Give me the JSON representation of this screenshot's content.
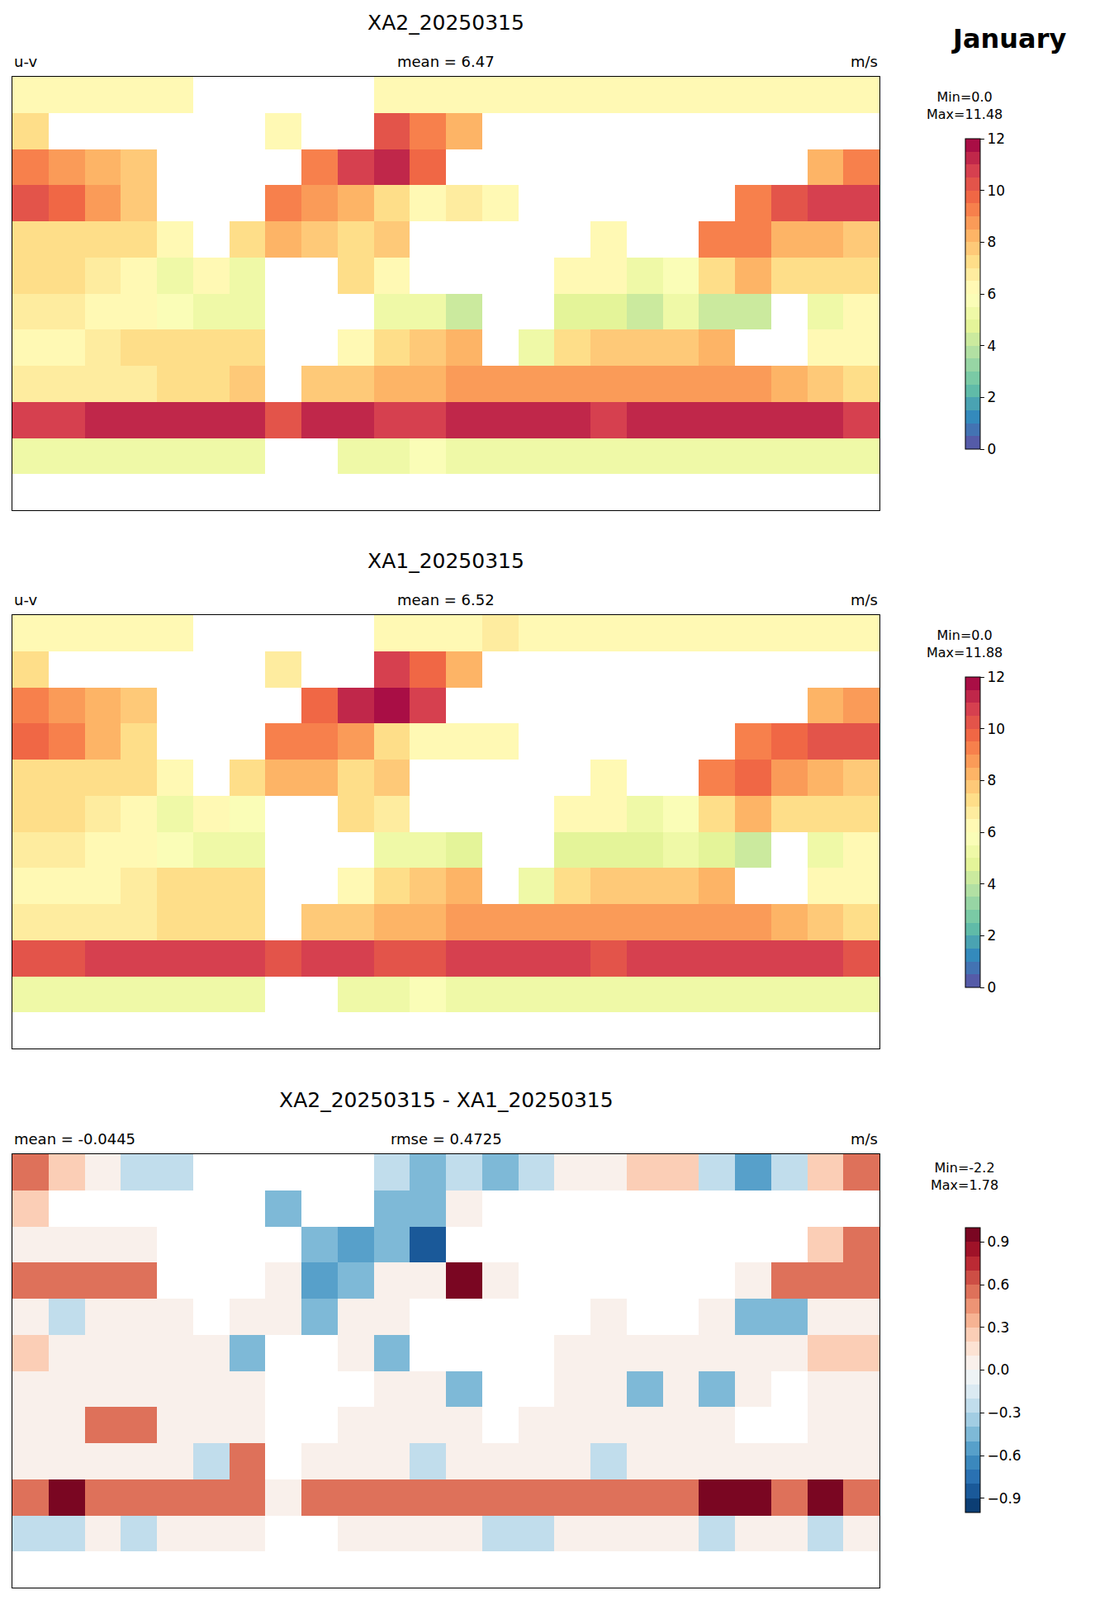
{
  "suptitle": "January",
  "chart_data": [
    {
      "type": "heatmap",
      "title": "XA2_20250315",
      "left_label": "u-v",
      "center_label": "mean = 6.47",
      "right_label": "m/s",
      "colorbar_label": [
        "Min=0.0",
        "Max=11.48"
      ],
      "xlim": [
        -180,
        180
      ],
      "ylim": [
        -90,
        90
      ],
      "tick_labels": false,
      "x": [
        -172.5,
        -157.5,
        -142.5,
        -127.5,
        -112.5,
        -97.5,
        -82.5,
        -67.5,
        -52.5,
        -37.5,
        -22.5,
        -7.5,
        7.5,
        22.5,
        37.5,
        52.5,
        67.5,
        82.5,
        97.5,
        112.5,
        127.5,
        142.5,
        157.5,
        172.5
      ],
      "y": [
        82.5,
        67.5,
        52.5,
        37.5,
        22.5,
        7.5,
        -7.5,
        -22.5,
        -37.5,
        -52.5,
        -67.5,
        -82.5
      ],
      "cells": [
        [
          6,
          6,
          6,
          6,
          6,
          null,
          null,
          null,
          null,
          null,
          6,
          6,
          6,
          6,
          6,
          6,
          6,
          6,
          6,
          6,
          6,
          6,
          6,
          6
        ],
        [
          7,
          null,
          null,
          null,
          null,
          null,
          null,
          6,
          null,
          null,
          10,
          9,
          8,
          null,
          null,
          null,
          null,
          null,
          null,
          null,
          null,
          null,
          null,
          null
        ],
        [
          9,
          8.5,
          8,
          7.5,
          null,
          null,
          null,
          null,
          9,
          10.5,
          11,
          9.5,
          null,
          null,
          null,
          null,
          null,
          null,
          null,
          null,
          null,
          null,
          8,
          9
        ],
        [
          10,
          9.5,
          8.5,
          7.5,
          null,
          null,
          null,
          9,
          8.5,
          8,
          7,
          6,
          6.5,
          6,
          null,
          null,
          null,
          null,
          null,
          null,
          9,
          10,
          10.5,
          10.5
        ],
        [
          7,
          7,
          7,
          7,
          6,
          null,
          7,
          8,
          7.5,
          7,
          7.5,
          null,
          null,
          null,
          null,
          null,
          6,
          null,
          null,
          9,
          9,
          8,
          8,
          7.5
        ],
        [
          7,
          7,
          6.5,
          6,
          5,
          6,
          5,
          null,
          null,
          7,
          6,
          null,
          null,
          null,
          null,
          6,
          6,
          5,
          5.5,
          7,
          8,
          7,
          7,
          7
        ],
        [
          6.5,
          6.5,
          6,
          6,
          5.5,
          5,
          5,
          null,
          null,
          null,
          5,
          5,
          4,
          null,
          null,
          4.5,
          4.5,
          4,
          5,
          4,
          4,
          null,
          5,
          6
        ],
        [
          6,
          6,
          6.5,
          7,
          7,
          7,
          7,
          null,
          null,
          6,
          7,
          7.5,
          8,
          null,
          5,
          7,
          7.5,
          7.5,
          7.5,
          8,
          null,
          null,
          6,
          6
        ],
        [
          6.5,
          6.5,
          6.5,
          6.5,
          7,
          7,
          7.5,
          null,
          7.5,
          7.5,
          8,
          8,
          8.5,
          8.5,
          8.5,
          8.5,
          8.5,
          8.5,
          8.5,
          8.5,
          8.5,
          8,
          7.5,
          7
        ],
        [
          10.5,
          10.5,
          11,
          11,
          11,
          11,
          11,
          10,
          11,
          11,
          10.5,
          10.5,
          11,
          11,
          11,
          11,
          10.5,
          11,
          11,
          11,
          11,
          11,
          11,
          10.5
        ],
        [
          5,
          5,
          5,
          5,
          5,
          5,
          5,
          null,
          null,
          5,
          5,
          5.5,
          5,
          5,
          5,
          5,
          5,
          5,
          5,
          5,
          5,
          5,
          5,
          5
        ],
        [
          null,
          null,
          null,
          null,
          null,
          null,
          null,
          null,
          null,
          null,
          null,
          null,
          null,
          null,
          null,
          null,
          null,
          null,
          null,
          null,
          null,
          null,
          null,
          null
        ]
      ],
      "colorbar_range": [
        0,
        12
      ],
      "colorbar_ticks": [
        0,
        2,
        4,
        6,
        8,
        10,
        12
      ]
    },
    {
      "type": "heatmap",
      "title": "XA1_20250315",
      "left_label": "u-v",
      "center_label": "mean = 6.52",
      "right_label": "m/s",
      "colorbar_label": [
        "Min=0.0",
        "Max=11.88"
      ],
      "xlim": [
        -180,
        180
      ],
      "ylim": [
        -90,
        90
      ],
      "tick_labels": false,
      "x": [
        -172.5,
        -157.5,
        -142.5,
        -127.5,
        -112.5,
        -97.5,
        -82.5,
        -67.5,
        -52.5,
        -37.5,
        -22.5,
        -7.5,
        7.5,
        22.5,
        37.5,
        52.5,
        67.5,
        82.5,
        97.5,
        112.5,
        127.5,
        142.5,
        157.5,
        172.5
      ],
      "y": [
        82.5,
        67.5,
        52.5,
        37.5,
        22.5,
        7.5,
        -7.5,
        -22.5,
        -37.5,
        -52.5,
        -67.5,
        -82.5
      ],
      "cells": [
        [
          6,
          6,
          6,
          6,
          6,
          null,
          null,
          null,
          null,
          null,
          6,
          6,
          6,
          6.5,
          6,
          6,
          6,
          6,
          6,
          6,
          6,
          6,
          6,
          6
        ],
        [
          7,
          null,
          null,
          null,
          null,
          null,
          null,
          6.5,
          null,
          null,
          10.5,
          9.5,
          8,
          null,
          null,
          null,
          null,
          null,
          null,
          null,
          null,
          null,
          null,
          null
        ],
        [
          9,
          8.5,
          8,
          7.5,
          null,
          null,
          null,
          null,
          9.5,
          11,
          11.5,
          10.5,
          null,
          null,
          null,
          null,
          null,
          null,
          null,
          null,
          null,
          null,
          8,
          8.5
        ],
        [
          9.5,
          9,
          8,
          7,
          null,
          null,
          null,
          9,
          9,
          8.5,
          7,
          6,
          6,
          6,
          null,
          null,
          null,
          null,
          null,
          null,
          9,
          9.5,
          10,
          10
        ],
        [
          7,
          7,
          7,
          7,
          6,
          null,
          7,
          8,
          8,
          7,
          7.5,
          null,
          null,
          null,
          null,
          null,
          6,
          null,
          null,
          9,
          9.5,
          8.5,
          8,
          7.5
        ],
        [
          7,
          7,
          6.5,
          6,
          5,
          6,
          5.5,
          null,
          null,
          7,
          6.5,
          null,
          null,
          null,
          null,
          6,
          6,
          5,
          5.5,
          7,
          8,
          7,
          7,
          7
        ],
        [
          6.5,
          6.5,
          6,
          6,
          5.5,
          5,
          5,
          null,
          null,
          null,
          5,
          5,
          4.5,
          null,
          null,
          4.5,
          4.5,
          4.5,
          5,
          4.5,
          4,
          null,
          5,
          6
        ],
        [
          6,
          6,
          6,
          6.5,
          7,
          7,
          7,
          null,
          null,
          6,
          7,
          7.5,
          8,
          null,
          5,
          7,
          7.5,
          7.5,
          7.5,
          8,
          null,
          null,
          6,
          6
        ],
        [
          6.5,
          6.5,
          6.5,
          6.5,
          7,
          7,
          7,
          null,
          7.5,
          7.5,
          8,
          8,
          8.5,
          8.5,
          8.5,
          8.5,
          8.5,
          8.5,
          8.5,
          8.5,
          8.5,
          8,
          7.5,
          7
        ],
        [
          10,
          10,
          10.5,
          10.5,
          10.5,
          10.5,
          10.5,
          10,
          10.5,
          10.5,
          10,
          10,
          10.5,
          10.5,
          10.5,
          10.5,
          10,
          10.5,
          10.5,
          10.5,
          10.5,
          10.5,
          10.5,
          10
        ],
        [
          5,
          5,
          5,
          5,
          5,
          5,
          5,
          null,
          null,
          5,
          5,
          5.5,
          5,
          5,
          5,
          5,
          5,
          5,
          5,
          5,
          5,
          5,
          5,
          5
        ],
        [
          null,
          null,
          null,
          null,
          null,
          null,
          null,
          null,
          null,
          null,
          null,
          null,
          null,
          null,
          null,
          null,
          null,
          null,
          null,
          null,
          null,
          null,
          null,
          null
        ]
      ],
      "colorbar_range": [
        0,
        12
      ],
      "colorbar_ticks": [
        0,
        2,
        4,
        6,
        8,
        10,
        12
      ]
    },
    {
      "type": "heatmap",
      "title": "XA2_20250315 - XA1_20250315",
      "left_label": "mean = -0.0445",
      "center_label": "rmse = 0.4725",
      "right_label": "m/s",
      "colorbar_label": [
        "Min=-2.2",
        "Max=1.78"
      ],
      "xlim": [
        -180,
        180
      ],
      "ylim": [
        -90,
        90
      ],
      "tick_labels": false,
      "x": [
        -172.5,
        -157.5,
        -142.5,
        -127.5,
        -112.5,
        -97.5,
        -82.5,
        -67.5,
        -52.5,
        -37.5,
        -22.5,
        -7.5,
        7.5,
        22.5,
        37.5,
        52.5,
        67.5,
        82.5,
        97.5,
        112.5,
        127.5,
        142.5,
        157.5,
        172.5
      ],
      "y": [
        82.5,
        67.5,
        52.5,
        37.5,
        22.5,
        7.5,
        -7.5,
        -22.5,
        -37.5,
        -52.5,
        -67.5,
        -82.5
      ],
      "cells": [
        [
          0.6,
          0.3,
          0,
          -0.3,
          -0.3,
          null,
          null,
          null,
          null,
          null,
          -0.3,
          -0.5,
          -0.3,
          -0.5,
          -0.3,
          0,
          0,
          0.3,
          0.3,
          -0.3,
          -0.6,
          -0.3,
          0.3,
          0.6
        ],
        [
          0.3,
          null,
          null,
          null,
          null,
          null,
          null,
          -0.5,
          null,
          null,
          -0.5,
          -0.5,
          0,
          null,
          null,
          null,
          null,
          null,
          null,
          null,
          null,
          null,
          null,
          null
        ],
        [
          0,
          0,
          0,
          0,
          null,
          null,
          null,
          null,
          -0.5,
          -0.6,
          -0.5,
          -0.9,
          null,
          null,
          null,
          null,
          null,
          null,
          null,
          null,
          null,
          null,
          0.3,
          0.5
        ],
        [
          0.5,
          0.6,
          0.5,
          0.5,
          null,
          null,
          null,
          0,
          -0.6,
          -0.5,
          0,
          0,
          0.9,
          0,
          null,
          null,
          null,
          null,
          null,
          null,
          0,
          0.5,
          0.5,
          0.5
        ],
        [
          0,
          -0.2,
          0,
          0,
          0,
          null,
          0,
          0,
          -0.5,
          0,
          0,
          null,
          null,
          null,
          null,
          null,
          0,
          null,
          null,
          0,
          -0.5,
          -0.5,
          0,
          0
        ],
        [
          0.2,
          0,
          0,
          0,
          0,
          0,
          -0.5,
          null,
          null,
          0,
          -0.5,
          null,
          null,
          null,
          null,
          0,
          0,
          0,
          0,
          0,
          0,
          0,
          0.2,
          0.2
        ],
        [
          0,
          0,
          0,
          0,
          0,
          0,
          0,
          null,
          null,
          null,
          0,
          0,
          -0.5,
          null,
          null,
          0,
          0,
          -0.5,
          0,
          -0.5,
          0,
          null,
          0,
          0
        ],
        [
          0,
          0,
          0.5,
          0.5,
          0,
          0,
          0,
          null,
          null,
          0,
          0,
          0,
          0,
          null,
          0,
          0,
          0,
          0,
          0,
          0,
          null,
          null,
          0,
          0
        ],
        [
          0,
          0,
          0,
          0,
          0,
          -0.3,
          0.5,
          null,
          0,
          0,
          0,
          -0.3,
          0,
          0,
          0,
          0,
          -0.3,
          0,
          0,
          0,
          0,
          0,
          0,
          0
        ],
        [
          0.6,
          0.9,
          0.6,
          0.5,
          0.5,
          0.6,
          0.5,
          0,
          0.5,
          0.5,
          0.5,
          0.6,
          0.5,
          0.5,
          0.5,
          0.6,
          0.5,
          0.5,
          0.6,
          0.9,
          0.9,
          0.6,
          0.9,
          0.6
        ],
        [
          -0.3,
          -0.3,
          0,
          -0.3,
          0,
          0,
          0,
          null,
          null,
          0,
          0,
          0,
          0,
          -0.3,
          -0.3,
          0,
          0,
          0,
          0,
          -0.3,
          0,
          0,
          -0.3,
          0
        ],
        [
          null,
          null,
          null,
          null,
          null,
          null,
          null,
          null,
          null,
          null,
          null,
          null,
          null,
          null,
          null,
          null,
          null,
          null,
          null,
          null,
          null,
          null,
          null,
          null
        ]
      ],
      "colorbar_range": [
        -1,
        1
      ],
      "colorbar_ticks": [
        {
          "value": -0.9,
          "label": "−0.9"
        },
        {
          "value": -0.6,
          "label": "−0.6"
        },
        {
          "value": -0.3,
          "label": "−0.3"
        },
        {
          "value": 0,
          "label": "0.0"
        },
        0.3,
        0.6,
        0.9
      ]
    }
  ]
}
